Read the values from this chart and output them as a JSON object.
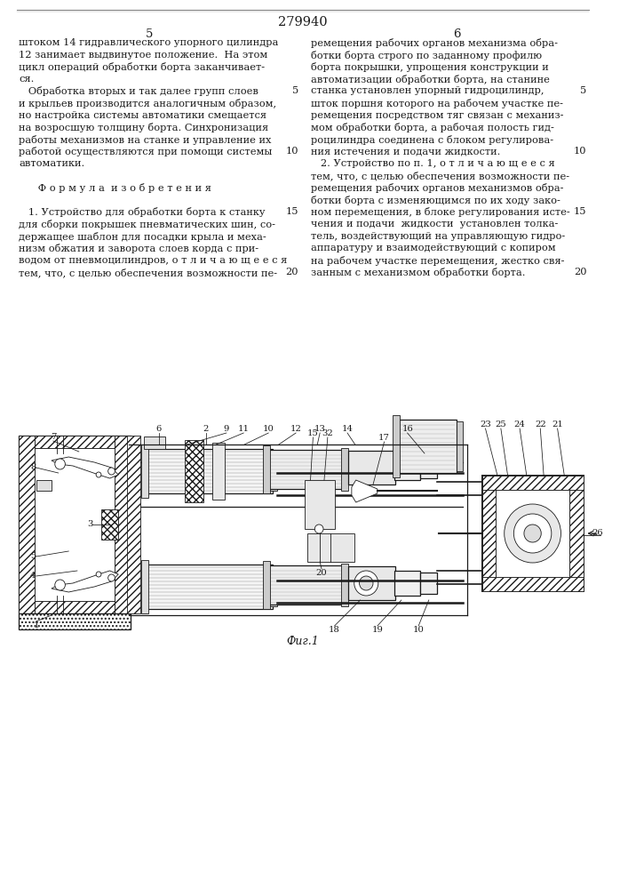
{
  "title": "279940",
  "page_col1": "5",
  "page_col2": "6",
  "col1_text_lines": [
    "штоком 14 гидравлического упорного цилиндра",
    "12 занимает выдвинутое положение.  На этом",
    "цикл операций обработки борта заканчивает-",
    "ся.",
    "   Обработка вторых и так далее групп слоев",
    "и крыльев производится аналогичным образом,",
    "но настройка системы автоматики смещается",
    "на возросшую толщину борта. Синхронизация",
    "работы механизмов на станке и управление их",
    "работой осуществляются при помощи системы",
    "автоматики.",
    "",
    "      Ф о р м у л а  и з о б р е т е н и я",
    "",
    "   1. Устройство для обработки борта к станку",
    "для сборки покрышек пневматических шин, со-",
    "держащее шаблон для посадки крыла и меха-",
    "низм обжатия и заворота слоев корда с при-",
    "водом от пневмоцилиндров, о т л и ч а ю щ е е с я",
    "тем, что, с целью обеспечения возможности пе-"
  ],
  "col2_text_lines": [
    "ремещения рабочих органов механизма обра-",
    "ботки борта строго по заданному профилю",
    "борта покрышки, упрощения конструкции и",
    "автоматизации обработки борта, на станине",
    "станка установлен упорный гидроцилиндр,",
    "шток поршня которого на рабочем участке пе-",
    "ремещения посредством тяг связан с механиз-",
    "мом обработки борта, а рабочая полость гид-",
    "роцилиндра соединена с блоком регулирова-",
    "ния истечения и подачи жидкости.",
    "   2. Устройство по п. 1, о т л и ч а ю щ е е с я",
    "тем, что, с целью обеспечения возможности пе-",
    "ремещения рабочих органов механизмов обра-",
    "ботки борта с изменяющимся по их ходу зако-",
    "ном перемещения, в блоке регулирования исте-",
    "чения и подачи  жидкости  установлен толка-",
    "тель, воздействующий на управляющую гидро-",
    "аппаратуру и взаимодействующий с копиром",
    "на рабочем участке перемещения, жестко свя-",
    "занным с механизмом обработки борта."
  ],
  "line_numbers_col1": [
    [
      5,
      4
    ],
    [
      10,
      9
    ]
  ],
  "line_numbers_col2": [
    [
      5,
      4
    ],
    [
      10,
      9
    ],
    [
      15,
      14
    ],
    [
      20,
      19
    ]
  ],
  "fig_caption": "Фиг.1",
  "bg_color": "#ffffff",
  "text_color": "#1a1a1a",
  "line_color": "#1a1a1a",
  "hatch_color": "#333333",
  "font_size_text": 8.2,
  "font_size_title": 10.5,
  "font_size_label": 7.2
}
